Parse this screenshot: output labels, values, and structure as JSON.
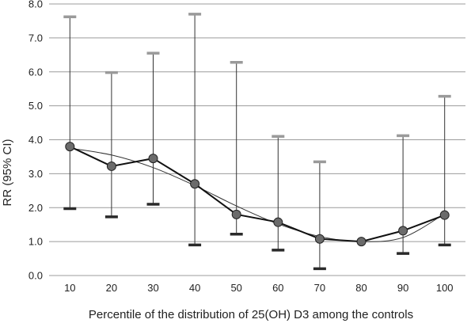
{
  "chart_data": {
    "type": "line",
    "title": "",
    "xlabel": "Percentile of the distribution of 25(OH) D3 among the controls",
    "ylabel": "RR (95% CI)",
    "categories": [
      10,
      20,
      30,
      40,
      50,
      60,
      70,
      80,
      90,
      100
    ],
    "ylim": [
      0,
      8
    ],
    "y_ticks": [
      "0.0",
      "1.0",
      "2.0",
      "3.0",
      "4.0",
      "5.0",
      "6.0",
      "7.0",
      "8.0"
    ],
    "grid": "horizontal",
    "series": [
      {
        "values": [
          3.8,
          3.22,
          3.45,
          2.7,
          1.8,
          1.57,
          1.08,
          1.0,
          1.32,
          1.78
        ],
        "lower": [
          1.97,
          1.73,
          2.1,
          0.9,
          1.22,
          0.75,
          0.2,
          null,
          0.65,
          0.9
        ],
        "upper": [
          7.62,
          5.98,
          6.55,
          7.7,
          6.28,
          4.1,
          3.35,
          null,
          4.12,
          5.28
        ]
      }
    ],
    "trend_line": {
      "x": [
        10,
        20,
        30,
        40,
        50,
        60,
        70,
        80,
        90,
        100
      ],
      "y": [
        3.75,
        3.55,
        3.18,
        2.65,
        2.05,
        1.52,
        1.15,
        1.0,
        1.12,
        1.82
      ]
    },
    "colors": {
      "line": "#111111",
      "marker_fill": "#6b6b6b",
      "upper_cap": "#9a9a9a",
      "lower_cap": "#2a2a2a",
      "grid": "#9c9c9c",
      "trend": "#333333"
    }
  }
}
